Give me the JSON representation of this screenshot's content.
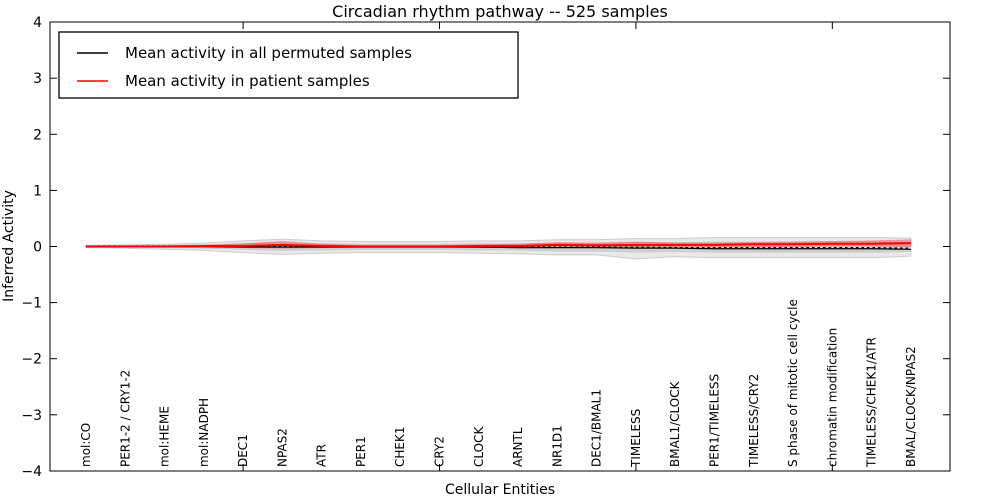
{
  "colors": {
    "frame": "#000000",
    "permuted_line": "#000000",
    "patient_line": "#ff0000",
    "gray_band_outer": "rgba(186,186,186,0.32)",
    "gray_band_inner": "rgba(160,160,160,0.32)",
    "gray_band_edge": "#cccccc",
    "red_band": "rgba(255,0,0,0.28)",
    "red_band_edge": "rgba(255,90,90,0.45)"
  },
  "legend": {
    "entries": [
      {
        "label": "Mean activity in all permuted samples",
        "color": "#000000"
      },
      {
        "label": "Mean activity in patient samples",
        "color": "#ff0000"
      }
    ]
  },
  "chart_data": {
    "type": "line",
    "title": "Circadian rhythm pathway -- 525 samples",
    "xlabel": "Cellular Entities",
    "ylabel": "Inferred Activity",
    "ylim": [
      -4,
      4
    ],
    "yticks": [
      4,
      3,
      2,
      1,
      0,
      -1,
      -2,
      -3,
      -4
    ],
    "xtick_indices": [
      4,
      9,
      14,
      19
    ],
    "grid": false,
    "legend_position": "upper left",
    "categories": [
      "mol:CO",
      "PER1-2 / CRY1-2",
      "mol:HEME",
      "mol:NADPH",
      "DEC1",
      "NPAS2",
      "ATR",
      "PER1",
      "CHEK1",
      "CRY2",
      "CLOCK",
      "ARNTL",
      "NR1D1",
      "DEC1/BMAL1",
      "TIMELESS",
      "BMAL1/CLOCK",
      "PER1/TIMELESS",
      "TIMELESS/CRY2",
      "S phase of mitotic cell cycle",
      "chromatin modification",
      "TIMELESS/CHEK1/ATR",
      "BMAL/CLOCK/NPAS2"
    ],
    "series": [
      {
        "name": "Mean activity in all permuted samples",
        "color": "#000000",
        "style": "solid",
        "width": 1.2,
        "values": [
          0.0,
          0.0,
          0.0,
          0.0,
          -0.01,
          -0.01,
          -0.01,
          -0.01,
          -0.01,
          -0.01,
          -0.01,
          -0.02,
          -0.02,
          -0.02,
          -0.03,
          -0.03,
          -0.04,
          -0.04,
          -0.04,
          -0.04,
          -0.04,
          -0.05
        ]
      },
      {
        "name": "permuted median (dashed overlay)",
        "color": "#000000",
        "style": "dashed",
        "width": 1.2,
        "values": [
          0.01,
          0.01,
          0.01,
          0.01,
          0.0,
          0.0,
          0.0,
          0.0,
          0.0,
          0.0,
          0.0,
          0.0,
          -0.01,
          -0.01,
          -0.01,
          -0.02,
          -0.02,
          -0.02,
          -0.02,
          -0.02,
          -0.02,
          -0.03
        ]
      },
      {
        "name": "Mean activity in patient samples",
        "color": "#ff0000",
        "style": "solid",
        "width": 2,
        "values": [
          0.0,
          0.0,
          0.0,
          0.01,
          0.01,
          0.03,
          0.01,
          0.0,
          0.0,
          0.0,
          0.01,
          0.01,
          0.03,
          0.02,
          0.03,
          0.03,
          0.03,
          0.04,
          0.04,
          0.05,
          0.05,
          0.06
        ]
      }
    ],
    "bands": [
      {
        "name": "permuted outer envelope",
        "fill": "rgba(186,186,186,0.32)",
        "edge": "#cccccc",
        "upper": [
          0.02,
          0.03,
          0.04,
          0.06,
          0.1,
          0.13,
          0.1,
          0.09,
          0.09,
          0.09,
          0.1,
          0.1,
          0.12,
          0.12,
          0.14,
          0.14,
          0.16,
          0.16,
          0.16,
          0.16,
          0.16,
          0.15
        ],
        "lower": [
          -0.02,
          -0.03,
          -0.05,
          -0.07,
          -0.11,
          -0.14,
          -0.12,
          -0.11,
          -0.11,
          -0.11,
          -0.12,
          -0.13,
          -0.15,
          -0.15,
          -0.22,
          -0.18,
          -0.2,
          -0.2,
          -0.2,
          -0.2,
          -0.2,
          -0.17
        ]
      },
      {
        "name": "permuted inner envelope",
        "fill": "rgba(160,160,160,0.32)",
        "edge": "#cccccc",
        "upper": [
          0.01,
          0.01,
          0.02,
          0.03,
          0.05,
          0.07,
          0.05,
          0.04,
          0.04,
          0.04,
          0.05,
          0.05,
          0.06,
          0.06,
          0.07,
          0.07,
          0.08,
          0.08,
          0.08,
          0.08,
          0.08,
          0.08
        ],
        "lower": [
          -0.01,
          -0.01,
          -0.02,
          -0.03,
          -0.05,
          -0.07,
          -0.06,
          -0.05,
          -0.05,
          -0.05,
          -0.06,
          -0.06,
          -0.08,
          -0.08,
          -0.1,
          -0.09,
          -0.1,
          -0.1,
          -0.1,
          -0.1,
          -0.1,
          -0.09
        ]
      },
      {
        "name": "patient envelope",
        "fill": "rgba(255,0,0,0.28)",
        "edge": "rgba(255,90,90,0.45)",
        "upper": [
          0.0,
          0.01,
          0.01,
          0.02,
          0.05,
          0.09,
          0.04,
          0.02,
          0.02,
          0.02,
          0.03,
          0.04,
          0.07,
          0.06,
          0.08,
          0.06,
          0.06,
          0.07,
          0.08,
          0.09,
          0.1,
          0.12
        ],
        "lower": [
          -0.01,
          -0.01,
          -0.01,
          -0.02,
          -0.02,
          -0.03,
          -0.02,
          -0.02,
          -0.02,
          -0.02,
          -0.02,
          -0.02,
          -0.02,
          -0.02,
          -0.02,
          -0.01,
          -0.01,
          0.0,
          0.0,
          0.01,
          0.01,
          0.0
        ]
      }
    ]
  }
}
